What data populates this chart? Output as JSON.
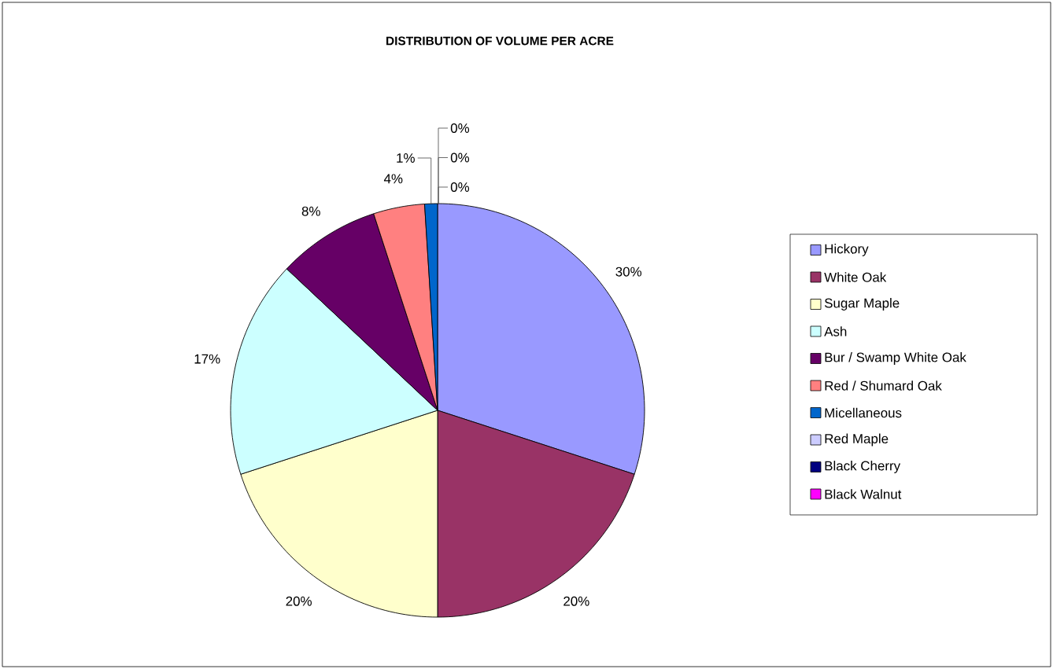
{
  "chart_data": {
    "type": "pie",
    "title": "DISTRIBUTION OF VOLUME PER ACRE",
    "categories": [
      "Hickory",
      "White Oak",
      "Sugar Maple",
      "Ash",
      "Bur / Swamp White Oak",
      "Red / Shumard Oak",
      "Micellaneous",
      "Red Maple",
      "Black Cherry",
      "Black Walnut"
    ],
    "values": [
      30,
      20,
      20,
      17,
      8,
      4,
      1,
      0,
      0,
      0
    ],
    "value_labels": [
      "30%",
      "20%",
      "20%",
      "17%",
      "8%",
      "4%",
      "1%",
      "0%",
      "0%",
      "0%"
    ],
    "colors": [
      "#9999ff",
      "#993366",
      "#ffffcc",
      "#ccffff",
      "#660066",
      "#ff8080",
      "#0066cc",
      "#ccccff",
      "#000080",
      "#ff00ff"
    ],
    "legend": "right"
  }
}
